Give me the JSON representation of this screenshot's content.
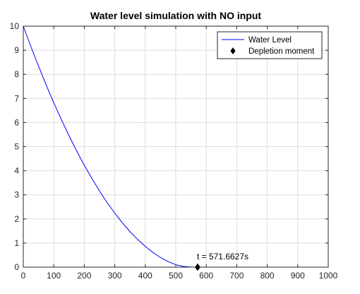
{
  "chart_data": {
    "type": "line",
    "title": "Water level simulation with NO input",
    "xlabel": "",
    "ylabel": "",
    "xlim": [
      0,
      1000
    ],
    "ylim": [
      0,
      10
    ],
    "xticks": [
      0,
      100,
      200,
      300,
      400,
      500,
      600,
      700,
      800,
      900,
      1000
    ],
    "yticks": [
      0,
      1,
      2,
      3,
      4,
      5,
      6,
      7,
      8,
      9,
      10
    ],
    "grid": true,
    "legend_position": "top-right",
    "series": [
      {
        "name": "Water Level",
        "kind": "line",
        "color": "#0000ff",
        "x": [
          0,
          25,
          50,
          75,
          100,
          125,
          150,
          175,
          200,
          225,
          250,
          275,
          300,
          325,
          350,
          375,
          400,
          425,
          450,
          475,
          500,
          525,
          550,
          571.6627,
          600,
          700,
          800,
          900,
          1000
        ],
        "y": [
          10,
          9.15,
          8.34,
          7.56,
          6.82,
          6.12,
          5.45,
          4.82,
          4.23,
          3.68,
          3.16,
          2.68,
          2.24,
          1.84,
          1.47,
          1.15,
          0.86,
          0.61,
          0.4,
          0.23,
          0.1,
          0.03,
          0.003,
          0,
          0,
          0,
          0,
          0,
          0
        ]
      },
      {
        "name": "Depletion moment",
        "kind": "marker",
        "marker": "diamond",
        "color": "#000000",
        "x": [
          571.6627
        ],
        "y": [
          0
        ]
      }
    ],
    "annotations": [
      {
        "text": "t = 571.6627s",
        "x": 571.6627,
        "y": 0
      }
    ]
  }
}
